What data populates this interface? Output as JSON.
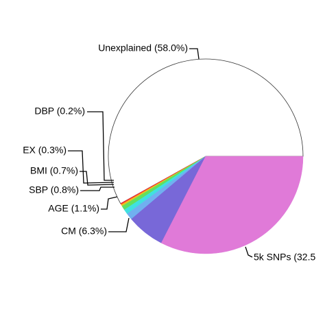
{
  "chart_data": {
    "type": "pie",
    "categories": [
      "Unexplained (58.0%)",
      "DBP (0.2%)",
      "EX (0.3%)",
      "BMI (0.7%)",
      "SBP (0.8%)",
      "AGE (1.1%)",
      "CM (6.3%)",
      "5k SNPs (32.5"
    ],
    "values": [
      58.0,
      0.2,
      0.3,
      0.7,
      0.8,
      1.1,
      6.3,
      32.5
    ],
    "colors": [
      "#ffffff",
      "#ff3030",
      "#e8c020",
      "#60e060",
      "#40e0e0",
      "#70b0f0",
      "#7868d8",
      "#e07ad8"
    ]
  }
}
